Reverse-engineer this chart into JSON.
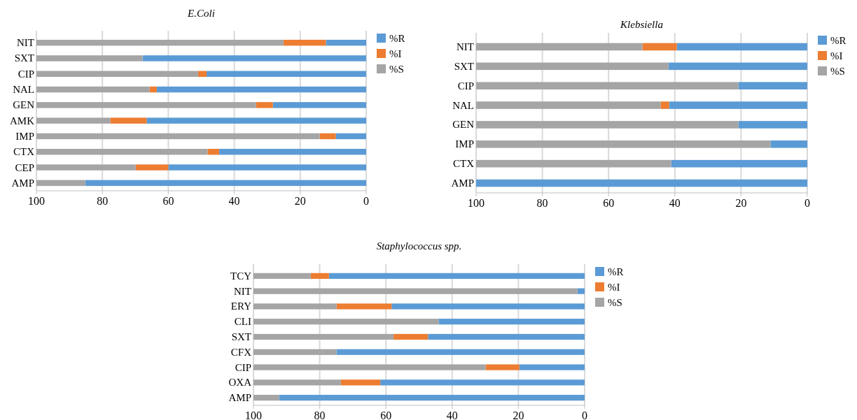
{
  "chart_data": [
    {
      "type": "bar",
      "orientation": "horizontal",
      "stacked": true,
      "title": "E.Coli",
      "categories": [
        "NIT",
        "SXT",
        "CIP",
        "NAL",
        "GEN",
        "AMK",
        "IMP",
        "CTX",
        "CEP",
        "AMP"
      ],
      "series": [
        {
          "name": "%R",
          "color": "#5b9bd5",
          "values": [
            12.2,
            67.8,
            48.4,
            63.5,
            28.3,
            66.6,
            9.2,
            44.6,
            60,
            85.2
          ]
        },
        {
          "name": "%I",
          "color": "#ed7d31",
          "values": [
            12.9,
            0,
            2.6,
            2.2,
            5.1,
            11,
            4.9,
            3.5,
            9.9,
            0
          ]
        },
        {
          "name": "%S",
          "color": "#a5a5a5",
          "values": [
            74.9,
            32.2,
            49,
            34.3,
            66.6,
            22.4,
            85.9,
            51.9,
            30.1,
            14.8
          ]
        }
      ],
      "xlim": [
        100,
        0
      ],
      "xticks": [
        100,
        80,
        60,
        40,
        20,
        0
      ],
      "grid": "x",
      "legend": "top right"
    },
    {
      "type": "bar",
      "orientation": "horizontal",
      "stacked": true,
      "title": "Klebsiella",
      "categories": [
        "NIT",
        "SXT",
        "CIP",
        "NAL",
        "GEN",
        "IMP",
        "CTX",
        "AMP"
      ],
      "series": [
        {
          "name": "%R",
          "color": "#5b9bd5",
          "values": [
            39.4,
            41.9,
            20.8,
            41.7,
            20.8,
            11.1,
            41.1,
            100
          ]
        },
        {
          "name": "%I",
          "color": "#ed7d31",
          "values": [
            10.4,
            0,
            0,
            2.6,
            0,
            0,
            0,
            0
          ]
        },
        {
          "name": "%S",
          "color": "#a5a5a5",
          "values": [
            50.2,
            58.1,
            79.2,
            55.7,
            79.2,
            88.9,
            58.9,
            0
          ]
        }
      ],
      "xlim": [
        100,
        0
      ],
      "xticks": [
        100,
        80,
        60,
        40,
        20,
        0
      ],
      "grid": "x",
      "legend": "top right"
    },
    {
      "type": "bar",
      "orientation": "horizontal",
      "stacked": true,
      "title": "Staphylococcus spp.",
      "categories": [
        "TCY",
        "NIT",
        "ERY",
        "CLI",
        "SXT",
        "CFX",
        "CIP",
        "OXA",
        "AMP"
      ],
      "series": [
        {
          "name": "%R",
          "color": "#5b9bd5",
          "values": [
            77.2,
            2.2,
            58.3,
            44.1,
            47.3,
            74.9,
            19.7,
            61.7,
            92.3
          ]
        },
        {
          "name": "%I",
          "color": "#ed7d31",
          "values": [
            5.5,
            0,
            16.6,
            0,
            10.4,
            0,
            10.2,
            11.9,
            0
          ]
        },
        {
          "name": "%S",
          "color": "#a5a5a5",
          "values": [
            17.3,
            97.8,
            25.1,
            55.9,
            42.3,
            25.1,
            70.1,
            26.4,
            7.7
          ]
        }
      ],
      "xlim": [
        100,
        0
      ],
      "xticks": [
        100,
        80,
        60,
        40,
        20,
        0
      ],
      "grid": "x",
      "legend": "top right"
    }
  ]
}
